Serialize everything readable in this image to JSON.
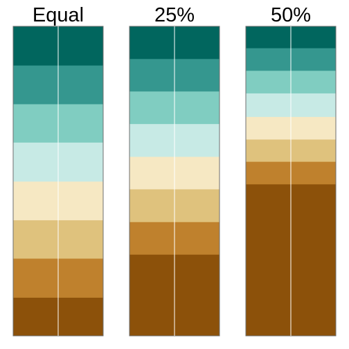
{
  "chart_data": [
    {
      "type": "area",
      "title": "Equal",
      "xlabel": "",
      "ylabel": "",
      "ylim": [
        0,
        1
      ],
      "grid": false,
      "legend": "none",
      "x_left": 0,
      "x_right": 1,
      "boundaries_left": [
        0.124,
        0.25,
        0.374,
        0.499,
        0.625,
        0.749,
        0.874
      ],
      "boundaries_right": [
        0.124,
        0.25,
        0.374,
        0.499,
        0.625,
        0.749,
        0.874
      ],
      "colors": [
        "#8c510a",
        "#bf812d",
        "#dfc27d",
        "#f6e8c3",
        "#c7eae5",
        "#80cdc1",
        "#35978f",
        "#01665e"
      ]
    },
    {
      "type": "area",
      "title": "25%",
      "xlabel": "",
      "ylabel": "",
      "ylim": [
        0,
        1
      ],
      "grid": false,
      "legend": "none",
      "x_left": 0,
      "x_right": 1,
      "boundaries_left": [
        0.263,
        0.368,
        0.474,
        0.579,
        0.685,
        0.79,
        0.895
      ],
      "boundaries_right": [
        0.263,
        0.368,
        0.474,
        0.579,
        0.685,
        0.79,
        0.895
      ],
      "colors": [
        "#8c510a",
        "#bf812d",
        "#dfc27d",
        "#f6e8c3",
        "#c7eae5",
        "#80cdc1",
        "#35978f",
        "#01665e"
      ]
    },
    {
      "type": "area",
      "title": "50%",
      "xlabel": "",
      "ylabel": "",
      "ylim": [
        0,
        1
      ],
      "grid": false,
      "legend": "none",
      "x_left": 0,
      "x_right": 1,
      "boundaries_left": [
        0.49,
        0.563,
        0.635,
        0.708,
        0.784,
        0.857,
        0.93
      ],
      "boundaries_right": [
        0.49,
        0.563,
        0.635,
        0.708,
        0.784,
        0.857,
        0.93
      ],
      "colors": [
        "#8c510a",
        "#bf812d",
        "#dfc27d",
        "#f6e8c3",
        "#c7eae5",
        "#80cdc1",
        "#35978f",
        "#01665e"
      ]
    }
  ]
}
